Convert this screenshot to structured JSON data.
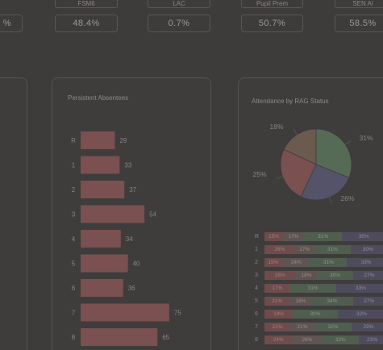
{
  "stats": [
    {
      "label": "",
      "value": "%"
    },
    {
      "label": "FSM6",
      "value": "48.4%"
    },
    {
      "label": "LAC",
      "value": "0.7%"
    },
    {
      "label": "Pupil Prem",
      "value": "50.7%"
    },
    {
      "label": "SEN Al",
      "value": "58.5%"
    }
  ],
  "persistent_absentees": {
    "title": "Persistent Absentees"
  },
  "attendance_rag": {
    "title": "Attendance by RAG Status"
  },
  "chart_data": [
    {
      "type": "bar",
      "title": "Persistent Absentees",
      "orientation": "horizontal",
      "categories": [
        "R",
        "1",
        "2",
        "3",
        "4",
        "5",
        "6",
        "7",
        "8"
      ],
      "values": [
        29,
        33,
        37,
        54,
        34,
        40,
        36,
        75,
        65
      ],
      "color": "#7a5050"
    },
    {
      "type": "pie",
      "title": "Attendance by RAG Status",
      "labels": [
        "18%",
        "31%",
        "26%",
        "25%"
      ],
      "values": [
        18,
        31,
        26,
        25
      ],
      "colors": [
        "#6b5a4e",
        "#566b55",
        "#55536a",
        "#7a5050"
      ]
    },
    {
      "type": "table",
      "title": "",
      "rows": [
        {
          "year": "R",
          "segments": [
            "15%",
            "17%",
            "31%",
            "35%"
          ]
        },
        {
          "year": "1",
          "segments": [
            "26%",
            "17%",
            "31%",
            "30%"
          ]
        },
        {
          "year": "2",
          "segments": [
            "15%",
            "24%",
            "31%",
            "33%"
          ]
        },
        {
          "year": "3",
          "segments": [
            "26%",
            "18%",
            "30%",
            "27%"
          ]
        },
        {
          "year": "4",
          "segments": [
            "17%",
            "",
            "31%",
            "33%"
          ]
        },
        {
          "year": "5",
          "segments": [
            "21%",
            "18%",
            "34%",
            "27%"
          ]
        },
        {
          "year": "6",
          "segments": [
            "19%",
            "",
            "30%",
            "32%"
          ]
        },
        {
          "year": "7",
          "segments": [
            "22%",
            "21%",
            "32%",
            "29%"
          ]
        },
        {
          "year": "8",
          "segments": [
            "24%",
            "26%",
            "32%",
            "23%"
          ]
        }
      ]
    }
  ]
}
